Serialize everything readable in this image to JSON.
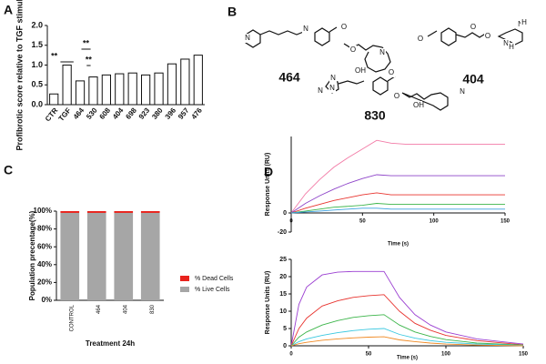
{
  "panels": [
    "A",
    "B",
    "C",
    "D"
  ],
  "structures": [
    {
      "label": "464",
      "atoms": [
        "N",
        "N",
        "O",
        "O",
        "OH",
        "N"
      ]
    },
    {
      "label": "404",
      "atoms": [
        "O",
        "O",
        "O",
        "N",
        "H",
        "N",
        "H"
      ]
    },
    {
      "label": "830",
      "atoms": [
        "N",
        "N",
        "N",
        "O",
        "O",
        "OH",
        "N"
      ]
    }
  ],
  "chart_data": [
    {
      "type": "bar",
      "ylabel": "Profibrotic score relative to TGF stimulation",
      "categories": [
        "CTR",
        "TGF",
        "464",
        "530",
        "608",
        "404",
        "698",
        "923",
        "380",
        "396",
        "957",
        "476"
      ],
      "values": [
        0.27,
        1.0,
        0.6,
        0.7,
        0.75,
        0.78,
        0.8,
        0.75,
        0.8,
        1.03,
        1.15,
        1.25
      ],
      "color": "#ffffff",
      "ylim": [
        0,
        2
      ],
      "yticks": [
        {
          "value": 0,
          "label": "0.0"
        },
        {
          "value": 0.5,
          "label": "0.5"
        },
        {
          "value": 1,
          "label": "1.0"
        },
        {
          "value": 1.5,
          "label": "1.5"
        },
        {
          "value": 2,
          "label": "2.0"
        }
      ],
      "annotations": [
        "**",
        "**",
        "**"
      ]
    },
    {
      "type": "stacked_bar",
      "ylabel": "Population precentage(%)",
      "xlabel": "Treatment 24h",
      "categories": [
        "CONTROL",
        "464",
        "404",
        "830"
      ],
      "series": [
        {
          "name": "% Live Cells",
          "color": "#a6a6a6",
          "values": [
            98,
            98,
            98,
            98
          ]
        },
        {
          "name": "% Dead Cells",
          "color": "#e8231d",
          "values": [
            2,
            2,
            2,
            2
          ]
        }
      ],
      "ylim": [
        0,
        100
      ],
      "yticks": [
        {
          "value": 0,
          "label": "0%"
        },
        {
          "value": 20,
          "label": "20%"
        },
        {
          "value": 40,
          "label": "40%"
        },
        {
          "value": 60,
          "label": "60%"
        },
        {
          "value": 80,
          "label": "80%"
        },
        {
          "value": 100,
          "label": "100%"
        }
      ]
    },
    {
      "type": "line",
      "ylabel": "Response Units (RU)",
      "xlabel": "Time (s)",
      "x": [
        0,
        10,
        20,
        30,
        40,
        50,
        60,
        70,
        80,
        100,
        120,
        150
      ],
      "series": [
        {
          "color": "#f27aa6",
          "values": [
            0,
            20,
            35,
            48,
            58,
            67,
            76,
            73,
            72,
            72,
            72,
            72
          ]
        },
        {
          "color": "#8e44c9",
          "values": [
            0,
            10,
            18,
            25,
            31,
            36,
            40,
            39,
            39,
            39,
            39,
            39
          ]
        },
        {
          "color": "#e8342f",
          "values": [
            0,
            5,
            9,
            13,
            16,
            19,
            21,
            19,
            19,
            19,
            19,
            19
          ]
        },
        {
          "color": "#3cb54a",
          "values": [
            0,
            2,
            4,
            6,
            7,
            8,
            10,
            9,
            9,
            9,
            9,
            9
          ]
        },
        {
          "color": "#3aa0e0",
          "values": [
            0,
            1,
            2,
            3,
            4,
            5,
            5,
            4,
            4,
            4,
            4,
            4
          ]
        }
      ],
      "xlim": [
        0,
        150
      ],
      "xticks": [
        0,
        50,
        100,
        150
      ],
      "ylim": [
        -20,
        80
      ],
      "yticks": [
        -20,
        0
      ]
    },
    {
      "type": "line",
      "ylabel": "Response Units (RU)",
      "xlabel": "Time (s)",
      "x": [
        0,
        5,
        10,
        20,
        30,
        40,
        50,
        60,
        70,
        80,
        90,
        100,
        120,
        150
      ],
      "series": [
        {
          "color": "#9b3fd1",
          "values": [
            0,
            12,
            17,
            20.5,
            21.3,
            21.5,
            21.5,
            21.5,
            14,
            9,
            6,
            4,
            2,
            0.5
          ]
        },
        {
          "color": "#e8342f",
          "values": [
            0,
            5,
            8,
            11.5,
            13,
            14,
            14.5,
            14.8,
            10,
            6.5,
            4.5,
            3,
            1.5,
            0.3
          ]
        },
        {
          "color": "#3cb54a",
          "values": [
            0,
            2.5,
            4,
            6,
            7.3,
            8.2,
            8.7,
            9,
            6,
            4,
            2.7,
            1.8,
            0.8,
            0.2
          ]
        },
        {
          "color": "#3ac8e0",
          "values": [
            0,
            1.2,
            2,
            3,
            3.8,
            4.4,
            4.8,
            5,
            3.3,
            2.2,
            1.5,
            1,
            0.5,
            0.1
          ]
        },
        {
          "color": "#f08a24",
          "values": [
            0,
            0.6,
            1,
            1.6,
            2,
            2.3,
            2.5,
            2.6,
            1.7,
            1.2,
            0.8,
            0.5,
            0.2,
            0
          ]
        }
      ],
      "xlim": [
        0,
        150
      ],
      "xticks": [
        0,
        50,
        100,
        150
      ],
      "ylim": [
        0,
        25
      ],
      "yticks": [
        0,
        5,
        10,
        15,
        20,
        25
      ]
    }
  ]
}
